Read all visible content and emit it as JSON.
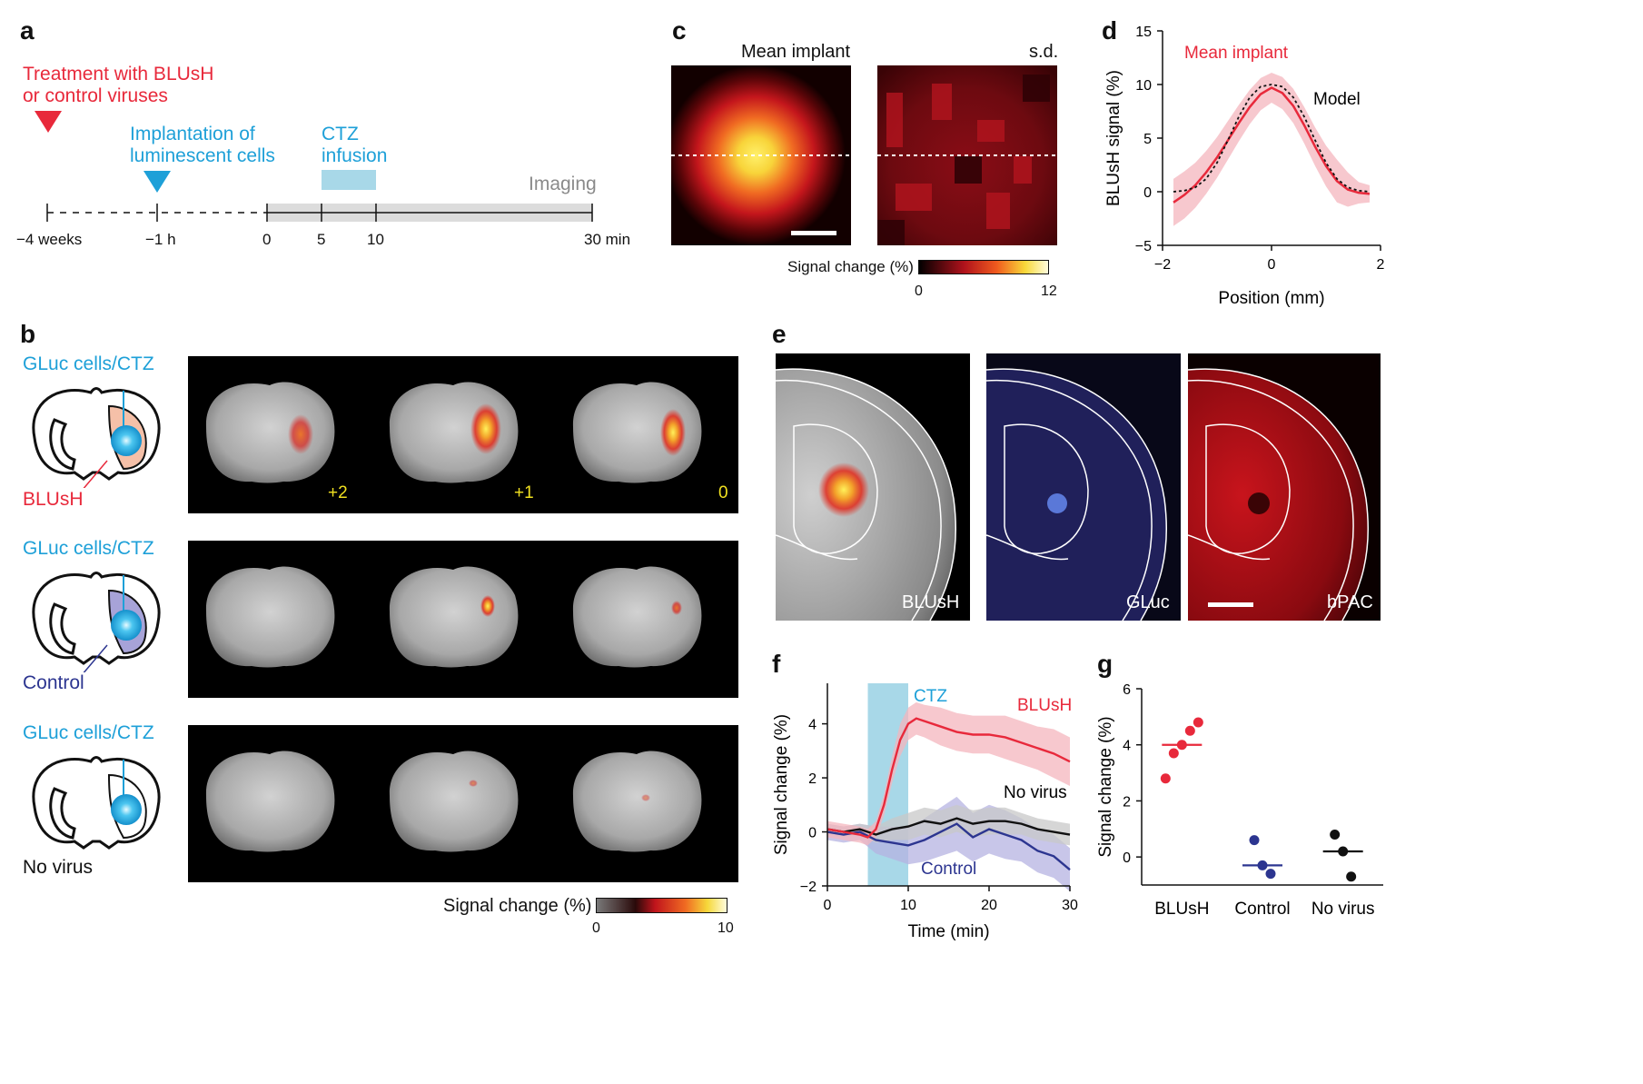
{
  "panels": {
    "a": "a",
    "b": "b",
    "c": "c",
    "d": "d",
    "e": "e",
    "f": "f",
    "g": "g"
  },
  "colors": {
    "red": "#e8293b",
    "blue": "#1ea0d8",
    "navy": "#2c3590",
    "lightblue": "#a8d8e8",
    "gray": "#9a9a9a"
  },
  "panel_a": {
    "treatment_line1": "Treatment with BLUsH",
    "treatment_line2": "or control viruses",
    "implant_line1": "Implantation of",
    "implant_line2": "luminescent cells",
    "ctz_line1": "CTZ",
    "ctz_line2": "infusion",
    "imaging": "Imaging",
    "ticks": [
      "−4 weeks",
      "−1 h",
      "0",
      "5",
      "10",
      "30 min"
    ]
  },
  "panel_b": {
    "rows": [
      {
        "top_label": "GLuc cells/CTZ",
        "bottom_label": "BLUsH",
        "slice_labels": [
          "+2",
          "+1",
          "0"
        ]
      },
      {
        "top_label": "GLuc cells/CTZ",
        "bottom_label": "Control",
        "slice_labels": [
          "",
          "",
          ""
        ]
      },
      {
        "top_label": "GLuc cells/CTZ",
        "bottom_label": "No virus",
        "slice_labels": [
          "",
          "",
          ""
        ]
      }
    ],
    "colorbar_label": "Signal change (%)",
    "colorbar_min": "0",
    "colorbar_max": "10"
  },
  "panel_c": {
    "title_left": "Mean implant",
    "title_right": "s.d.",
    "colorbar_label": "Signal change (%)",
    "colorbar_min": "0",
    "colorbar_max": "12"
  },
  "panel_e": {
    "labels": [
      "BLUsH",
      "GLuc",
      "bPAC"
    ]
  },
  "chart_data": [
    {
      "panel": "d",
      "type": "line",
      "xlabel": "Position (mm)",
      "ylabel": "BLUsH signal (%)",
      "xlim": [
        -2,
        2
      ],
      "ylim": [
        -5,
        15
      ],
      "xticks": [
        "−2",
        "0",
        "2"
      ],
      "yticks": [
        "−5",
        "0",
        "5",
        "10",
        "15"
      ],
      "series": [
        {
          "name": "Mean implant",
          "x": [
            -1.8,
            -1.6,
            -1.4,
            -1.2,
            -1.0,
            -0.8,
            -0.6,
            -0.4,
            -0.2,
            0.0,
            0.2,
            0.4,
            0.6,
            0.8,
            1.0,
            1.2,
            1.4,
            1.6,
            1.8
          ],
          "y": [
            -1.0,
            -0.3,
            0.6,
            1.8,
            3.2,
            4.8,
            6.4,
            7.9,
            9.1,
            9.7,
            9.2,
            8.0,
            6.2,
            4.2,
            2.4,
            1.0,
            0.2,
            -0.1,
            -0.2
          ],
          "band": [
            2.2,
            2.2,
            2.1,
            2.0,
            1.9,
            1.8,
            1.7,
            1.6,
            1.5,
            1.4,
            1.5,
            1.6,
            1.7,
            1.8,
            1.9,
            2.0,
            1.6,
            1.0,
            0.8
          ]
        },
        {
          "name": "Model",
          "x": [
            -1.8,
            -1.6,
            -1.4,
            -1.2,
            -1.0,
            -0.8,
            -0.6,
            -0.4,
            -0.2,
            0.0,
            0.2,
            0.4,
            0.6,
            0.8,
            1.0,
            1.2,
            1.4,
            1.6,
            1.8
          ],
          "y": [
            0.0,
            0.1,
            0.4,
            1.2,
            2.7,
            4.8,
            7.0,
            8.8,
            9.8,
            10.0,
            9.8,
            8.8,
            7.0,
            4.8,
            2.7,
            1.2,
            0.4,
            0.1,
            0.0
          ]
        }
      ]
    },
    {
      "panel": "f",
      "type": "line",
      "xlabel": "Time (min)",
      "ylabel": "Signal change (%)",
      "xlim": [
        0,
        30
      ],
      "ylim": [
        -2,
        5.5
      ],
      "xticks": [
        "0",
        "10",
        "20",
        "30"
      ],
      "yticks": [
        "−2",
        "0",
        "2",
        "4"
      ],
      "shaded_interval": [
        5,
        10
      ],
      "shaded_label": "CTZ",
      "series": [
        {
          "name": "BLUsH",
          "x": [
            0,
            2,
            4,
            5,
            6,
            7,
            8,
            9,
            10,
            11,
            12,
            14,
            16,
            18,
            20,
            22,
            24,
            26,
            28,
            30
          ],
          "y": [
            0.1,
            0.0,
            -0.1,
            -0.2,
            0.1,
            1.0,
            2.3,
            3.4,
            4.0,
            4.2,
            4.1,
            3.9,
            3.7,
            3.6,
            3.6,
            3.5,
            3.3,
            3.1,
            2.9,
            2.6
          ],
          "band": [
            0.3,
            0.3,
            0.3,
            0.3,
            0.3,
            0.4,
            0.5,
            0.6,
            0.6,
            0.6,
            0.6,
            0.7,
            0.7,
            0.7,
            0.7,
            0.8,
            0.8,
            0.8,
            0.9,
            0.9
          ]
        },
        {
          "name": "No virus",
          "x": [
            0,
            2,
            4,
            6,
            8,
            10,
            12,
            14,
            16,
            18,
            20,
            22,
            24,
            26,
            28,
            30
          ],
          "y": [
            0.1,
            0.0,
            0.1,
            -0.1,
            0.1,
            0.2,
            0.4,
            0.3,
            0.5,
            0.3,
            0.4,
            0.4,
            0.3,
            0.1,
            0.0,
            -0.1
          ],
          "band": [
            0.2,
            0.2,
            0.2,
            0.3,
            0.4,
            0.5,
            0.5,
            0.5,
            0.5,
            0.5,
            0.5,
            0.5,
            0.4,
            0.4,
            0.4,
            0.4
          ]
        },
        {
          "name": "Control",
          "x": [
            0,
            2,
            4,
            6,
            8,
            10,
            12,
            14,
            16,
            18,
            20,
            22,
            24,
            26,
            28,
            30
          ],
          "y": [
            0.0,
            -0.1,
            0.0,
            -0.3,
            -0.4,
            -0.5,
            -0.3,
            0.0,
            0.3,
            -0.2,
            0.1,
            -0.1,
            -0.3,
            -0.7,
            -0.9,
            -1.4
          ],
          "band": [
            0.3,
            0.3,
            0.3,
            0.5,
            0.6,
            0.7,
            0.8,
            0.9,
            1.0,
            0.9,
            0.9,
            0.9,
            0.8,
            0.8,
            0.8,
            0.8
          ]
        }
      ]
    },
    {
      "panel": "g",
      "type": "scatter",
      "ylabel": "Signal change (%)",
      "ylim": [
        -1,
        6
      ],
      "yticks": [
        "0",
        "2",
        "4",
        "6"
      ],
      "categories": [
        "BLUsH",
        "Control",
        "No virus"
      ],
      "series": [
        {
          "category": "BLUsH",
          "points": [
            2.8,
            3.7,
            4.0,
            4.5,
            4.8
          ],
          "median": 4.0
        },
        {
          "category": "Control",
          "points": [
            0.6,
            -0.3,
            -0.6
          ],
          "median": -0.3
        },
        {
          "category": "No virus",
          "points": [
            0.8,
            0.2,
            -0.7
          ],
          "median": 0.2
        }
      ]
    }
  ]
}
